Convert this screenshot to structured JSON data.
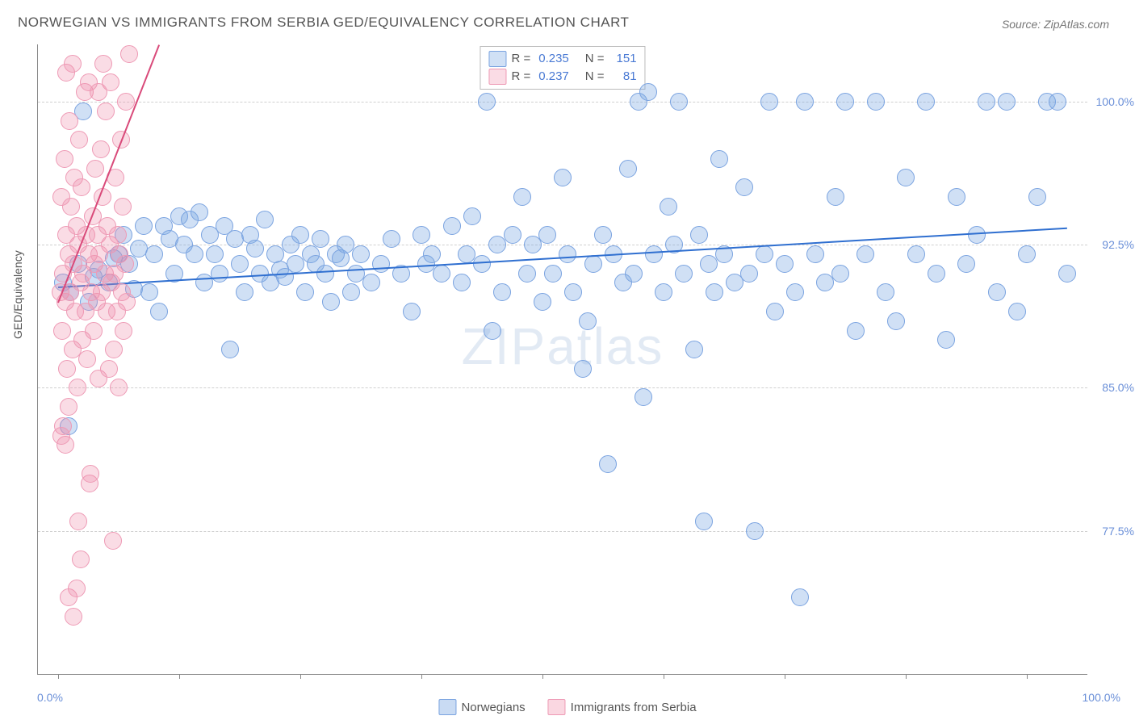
{
  "title": "NORWEGIAN VS IMMIGRANTS FROM SERBIA GED/EQUIVALENCY CORRELATION CHART",
  "source": "Source: ZipAtlas.com",
  "ylabel": "GED/Equivalency",
  "watermark_a": "ZIP",
  "watermark_b": "atlas",
  "chart": {
    "type": "scatter",
    "background_color": "#ffffff",
    "grid_color": "#d0d0d0",
    "xlim": [
      -2,
      102
    ],
    "ylim": [
      70,
      103
    ],
    "xtick_positions": [
      0,
      12,
      24,
      36,
      48,
      60,
      72,
      84,
      96
    ],
    "xtick_labels": {
      "0": "0.0%",
      "96": "100.0%"
    },
    "ytick_positions": [
      77.5,
      85.0,
      92.5,
      100.0
    ],
    "ytick_labels": [
      "77.5%",
      "85.0%",
      "92.5%",
      "100.0%"
    ],
    "series": [
      {
        "name": "Norwegians",
        "color_fill": "rgba(120,165,225,0.35)",
        "color_stroke": "#7aa3e0",
        "marker_radius": 10,
        "R": "0.235",
        "N": "151",
        "trend": {
          "x1": 0,
          "y1": 90.3,
          "x2": 100,
          "y2": 93.4,
          "color": "#2f6fd0",
          "width": 2
        },
        "points": [
          [
            0.5,
            90.5
          ],
          [
            1,
            83.0
          ],
          [
            1.2,
            90.0
          ],
          [
            2,
            91.5
          ],
          [
            2.5,
            99.5
          ],
          [
            3,
            89.5
          ],
          [
            3.5,
            90.8
          ],
          [
            4,
            91.2
          ],
          [
            5,
            90.5
          ],
          [
            5.5,
            91.8
          ],
          [
            6,
            92.0
          ],
          [
            6.5,
            93.0
          ],
          [
            7,
            91.5
          ],
          [
            7.5,
            90.2
          ],
          [
            8,
            92.3
          ],
          [
            8.5,
            93.5
          ],
          [
            9,
            90.0
          ],
          [
            9.5,
            92.0
          ],
          [
            10,
            89.0
          ],
          [
            10.5,
            93.5
          ],
          [
            11,
            92.8
          ],
          [
            11.5,
            91.0
          ],
          [
            12,
            94.0
          ],
          [
            12.5,
            92.5
          ],
          [
            13,
            93.8
          ],
          [
            13.5,
            92.0
          ],
          [
            14,
            94.2
          ],
          [
            14.5,
            90.5
          ],
          [
            15,
            93.0
          ],
          [
            15.5,
            92.0
          ],
          [
            16,
            91.0
          ],
          [
            16.5,
            93.5
          ],
          [
            17,
            87.0
          ],
          [
            17.5,
            92.8
          ],
          [
            18,
            91.5
          ],
          [
            18.5,
            90.0
          ],
          [
            19,
            93.0
          ],
          [
            19.5,
            92.3
          ],
          [
            20,
            91.0
          ],
          [
            20.5,
            93.8
          ],
          [
            21,
            90.5
          ],
          [
            21.5,
            92.0
          ],
          [
            22,
            91.2
          ],
          [
            22.5,
            90.8
          ],
          [
            23,
            92.5
          ],
          [
            23.5,
            91.5
          ],
          [
            24,
            93.0
          ],
          [
            24.5,
            90.0
          ],
          [
            25,
            92.0
          ],
          [
            25.5,
            91.5
          ],
          [
            26,
            92.8
          ],
          [
            26.5,
            91.0
          ],
          [
            27,
            89.5
          ],
          [
            27.5,
            92.0
          ],
          [
            28,
            91.8
          ],
          [
            28.5,
            92.5
          ],
          [
            29,
            90.0
          ],
          [
            29.5,
            91.0
          ],
          [
            30,
            92.0
          ],
          [
            31,
            90.5
          ],
          [
            32,
            91.5
          ],
          [
            33,
            92.8
          ],
          [
            34,
            91.0
          ],
          [
            35,
            89.0
          ],
          [
            36,
            93.0
          ],
          [
            36.5,
            91.5
          ],
          [
            37,
            92.0
          ],
          [
            38,
            91.0
          ],
          [
            39,
            93.5
          ],
          [
            40,
            90.5
          ],
          [
            40.5,
            92.0
          ],
          [
            41,
            94.0
          ],
          [
            42,
            91.5
          ],
          [
            42.5,
            100.0
          ],
          [
            43,
            88.0
          ],
          [
            43.5,
            92.5
          ],
          [
            44,
            90.0
          ],
          [
            45,
            93.0
          ],
          [
            46,
            95.0
          ],
          [
            46.5,
            91.0
          ],
          [
            47,
            92.5
          ],
          [
            48,
            89.5
          ],
          [
            48.5,
            93.0
          ],
          [
            49,
            91.0
          ],
          [
            50,
            96.0
          ],
          [
            50.5,
            92.0
          ],
          [
            51,
            90.0
          ],
          [
            52,
            86.0
          ],
          [
            52.5,
            88.5
          ],
          [
            53,
            91.5
          ],
          [
            54,
            93.0
          ],
          [
            54.5,
            81.0
          ],
          [
            55,
            92.0
          ],
          [
            56,
            90.5
          ],
          [
            56.5,
            96.5
          ],
          [
            57,
            91.0
          ],
          [
            57.5,
            100.0
          ],
          [
            58,
            84.5
          ],
          [
            58.5,
            100.5
          ],
          [
            59,
            92.0
          ],
          [
            60,
            90.0
          ],
          [
            60.5,
            94.5
          ],
          [
            61,
            92.5
          ],
          [
            61.5,
            100.0
          ],
          [
            62,
            91.0
          ],
          [
            63,
            87.0
          ],
          [
            63.5,
            93.0
          ],
          [
            64,
            78.0
          ],
          [
            64.5,
            91.5
          ],
          [
            65,
            90.0
          ],
          [
            65.5,
            97.0
          ],
          [
            66,
            92.0
          ],
          [
            67,
            90.5
          ],
          [
            68,
            95.5
          ],
          [
            68.5,
            91.0
          ],
          [
            69,
            77.5
          ],
          [
            70,
            92.0
          ],
          [
            70.5,
            100.0
          ],
          [
            71,
            89.0
          ],
          [
            72,
            91.5
          ],
          [
            73,
            90.0
          ],
          [
            73.5,
            74.0
          ],
          [
            74,
            100.0
          ],
          [
            75,
            92.0
          ],
          [
            76,
            90.5
          ],
          [
            77,
            95.0
          ],
          [
            77.5,
            91.0
          ],
          [
            78,
            100.0
          ],
          [
            79,
            88.0
          ],
          [
            80,
            92.0
          ],
          [
            81,
            100.0
          ],
          [
            82,
            90.0
          ],
          [
            83,
            88.5
          ],
          [
            84,
            96.0
          ],
          [
            85,
            92.0
          ],
          [
            86,
            100.0
          ],
          [
            87,
            91.0
          ],
          [
            88,
            87.5
          ],
          [
            89,
            95.0
          ],
          [
            90,
            91.5
          ],
          [
            91,
            93.0
          ],
          [
            92,
            100.0
          ],
          [
            93,
            90.0
          ],
          [
            94,
            100.0
          ],
          [
            95,
            89.0
          ],
          [
            96,
            92.0
          ],
          [
            97,
            95.0
          ],
          [
            98,
            100.0
          ],
          [
            99,
            100.0
          ],
          [
            100,
            91.0
          ]
        ]
      },
      {
        "name": "Immigrants from Serbia",
        "color_fill": "rgba(240,140,170,0.30)",
        "color_stroke": "#ee9ab5",
        "marker_radius": 10,
        "R": "0.237",
        "N": "81",
        "trend": {
          "x1": 0,
          "y1": 89.5,
          "x2": 10,
          "y2": 103.0,
          "color": "#d94a7a",
          "width": 2
        },
        "points": [
          [
            0.2,
            90.0
          ],
          [
            0.3,
            95.0
          ],
          [
            0.4,
            88.0
          ],
          [
            0.5,
            91.0
          ],
          [
            0.6,
            97.0
          ],
          [
            0.7,
            89.5
          ],
          [
            0.8,
            93.0
          ],
          [
            0.9,
            86.0
          ],
          [
            1.0,
            92.0
          ],
          [
            1.1,
            99.0
          ],
          [
            1.2,
            90.0
          ],
          [
            1.3,
            94.5
          ],
          [
            1.4,
            87.0
          ],
          [
            1.5,
            91.5
          ],
          [
            1.6,
            96.0
          ],
          [
            1.7,
            89.0
          ],
          [
            1.8,
            93.5
          ],
          [
            1.9,
            85.0
          ],
          [
            2.0,
            92.5
          ],
          [
            2.1,
            98.0
          ],
          [
            2.2,
            90.5
          ],
          [
            2.3,
            95.5
          ],
          [
            2.4,
            87.5
          ],
          [
            2.5,
            91.0
          ],
          [
            2.6,
            100.5
          ],
          [
            2.7,
            89.0
          ],
          [
            2.8,
            93.0
          ],
          [
            2.9,
            86.5
          ],
          [
            3.0,
            92.0
          ],
          [
            3.1,
            80.0
          ],
          [
            3.2,
            80.5
          ],
          [
            3.3,
            90.0
          ],
          [
            3.4,
            94.0
          ],
          [
            3.5,
            88.0
          ],
          [
            3.6,
            91.5
          ],
          [
            3.7,
            96.5
          ],
          [
            3.8,
            89.5
          ],
          [
            3.9,
            93.0
          ],
          [
            4.0,
            85.5
          ],
          [
            4.1,
            92.0
          ],
          [
            4.2,
            97.5
          ],
          [
            4.3,
            90.0
          ],
          [
            4.4,
            95.0
          ],
          [
            4.5,
            102.0
          ],
          [
            4.6,
            91.0
          ],
          [
            4.7,
            99.5
          ],
          [
            4.8,
            89.0
          ],
          [
            4.9,
            93.5
          ],
          [
            5.0,
            86.0
          ],
          [
            5.1,
            92.5
          ],
          [
            5.2,
            101.0
          ],
          [
            5.3,
            90.5
          ],
          [
            5.4,
            77.0
          ],
          [
            5.5,
            87.0
          ],
          [
            5.6,
            91.0
          ],
          [
            5.7,
            96.0
          ],
          [
            5.8,
            89.0
          ],
          [
            5.9,
            93.0
          ],
          [
            6.0,
            85.0
          ],
          [
            6.1,
            92.0
          ],
          [
            6.2,
            98.0
          ],
          [
            6.3,
            90.0
          ],
          [
            6.4,
            94.5
          ],
          [
            6.5,
            88.0
          ],
          [
            6.6,
            91.5
          ],
          [
            6.7,
            100.0
          ],
          [
            6.8,
            89.5
          ],
          [
            7.0,
            102.5
          ],
          [
            1.0,
            74.0
          ],
          [
            1.5,
            73.0
          ],
          [
            1.8,
            74.5
          ],
          [
            2.0,
            78.0
          ],
          [
            2.2,
            76.0
          ],
          [
            0.8,
            101.5
          ],
          [
            1.4,
            102.0
          ],
          [
            3.0,
            101.0
          ],
          [
            4.0,
            100.5
          ],
          [
            0.5,
            83.0
          ],
          [
            0.7,
            82.0
          ],
          [
            1.0,
            84.0
          ],
          [
            0.3,
            82.5
          ]
        ]
      }
    ]
  },
  "bottom_legend": [
    {
      "swatch_fill": "rgba(120,165,225,0.4)",
      "swatch_stroke": "#7aa3e0",
      "label": "Norwegians"
    },
    {
      "swatch_fill": "rgba(240,140,170,0.35)",
      "swatch_stroke": "#ee9ab5",
      "label": "Immigrants from Serbia"
    }
  ]
}
